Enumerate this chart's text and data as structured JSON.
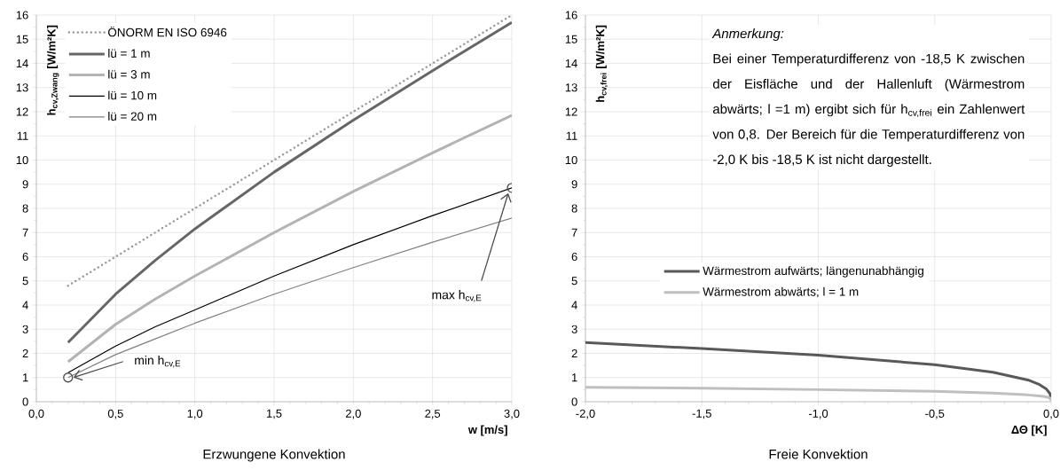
{
  "chart_data": [
    {
      "type": "line",
      "title": "Erzwungene Konvektion",
      "xlabel": "w [m/s]",
      "ylabel": "h$_{cv,Zwang}$ [W/m²K]",
      "x": [
        0.2,
        0.5,
        0.75,
        1.0,
        1.5,
        2.0,
        2.5,
        3.0
      ],
      "series": [
        {
          "name": "ÖNORM EN ISO 6946",
          "color": "#999999",
          "line_style": "dotted",
          "values": [
            4.8,
            6.0,
            7.0,
            8.0,
            10.0,
            12.0,
            14.0,
            16.0
          ]
        },
        {
          "name": "lü = 1 m",
          "color": "#666666",
          "values": [
            2.45,
            4.45,
            5.85,
            7.15,
            9.5,
            11.65,
            13.7,
            15.7
          ]
        },
        {
          "name": "lü = 3 m",
          "color": "#b3b3b3",
          "values": [
            1.65,
            3.2,
            4.25,
            5.2,
            7.0,
            8.7,
            10.3,
            11.85
          ]
        },
        {
          "name": "lü = 10 m",
          "color": "#000000",
          "values": [
            1.2,
            2.3,
            3.1,
            3.8,
            5.2,
            6.5,
            7.7,
            8.85
          ]
        },
        {
          "name": "lü = 20 m",
          "color": "#808080",
          "values": [
            1.0,
            1.95,
            2.6,
            3.25,
            4.45,
            5.55,
            6.6,
            7.6
          ]
        }
      ],
      "xlim": [
        0,
        3
      ],
      "ylim": [
        0,
        16
      ],
      "xticks": [
        {
          "value": 0,
          "label": "0,0"
        },
        {
          "value": 0.5,
          "label": "0,5"
        },
        {
          "value": 1,
          "label": "1,0"
        },
        {
          "value": 1.5,
          "label": "1,5"
        },
        {
          "value": 2,
          "label": "2,0"
        },
        {
          "value": 2.5,
          "label": "2,5"
        },
        {
          "value": 3,
          "label": "3,0"
        }
      ],
      "yticks": [
        0,
        1,
        2,
        3,
        4,
        5,
        6,
        7,
        8,
        9,
        10,
        11,
        12,
        13,
        14,
        15,
        16
      ],
      "annotations": [
        {
          "text": "min h$_{cv,E}$",
          "x": 0.2,
          "y": 1.0
        },
        {
          "text": "max h$_{cv,E}$",
          "x": 3.0,
          "y": 8.85
        }
      ],
      "grid": true,
      "legend": "top left"
    },
    {
      "type": "line",
      "title": "Freie Konvektion",
      "xlabel": "ΔΘ [K]",
      "ylabel": "h$_{cv,frei}$ [W/m²K]",
      "x": [
        -2.0,
        -1.5,
        -1.0,
        -0.5,
        -0.25,
        -0.1,
        -0.05,
        -0.02,
        -0.005,
        0.0
      ],
      "series": [
        {
          "name": "Wärmestrom aufwärts; längenunabhängig",
          "color": "#595959",
          "values": [
            2.45,
            2.2,
            1.93,
            1.53,
            1.22,
            0.9,
            0.71,
            0.52,
            0.33,
            0.1
          ]
        },
        {
          "name": "Wärmestrom abwärts; l = 1 m",
          "color": "#bfbfbf",
          "values": [
            0.6,
            0.56,
            0.5,
            0.43,
            0.36,
            0.28,
            0.24,
            0.2,
            0.15,
            0.05
          ]
        }
      ],
      "xlim": [
        -2,
        0
      ],
      "ylim": [
        0,
        16
      ],
      "xticks": [
        {
          "value": -2,
          "label": "-2,0"
        },
        {
          "value": -1.5,
          "label": "-1,5"
        },
        {
          "value": -1,
          "label": "-1,0"
        },
        {
          "value": -0.5,
          "label": "-0,5"
        },
        {
          "value": 0,
          "label": "0,0"
        }
      ],
      "yticks": [
        0,
        1,
        2,
        3,
        4,
        5,
        6,
        7,
        8,
        9,
        10,
        11,
        12,
        13,
        14,
        15,
        16
      ],
      "annotations": [
        "Anmerkung:",
        "Bei einer Temperaturdifferenz von -18,5 K zwischen der Eisfläche und der Hallenluft (Wärmestrom abwärts; l =1 m) ergibt sich für h$_{cv,frei}$ ein Zahlenwert von 0,8. Der Bereich für die Temperaturdifferenz von -2,0 K bis -18,5 K ist nicht dargestellt."
      ],
      "grid": true,
      "legend": "left"
    }
  ]
}
